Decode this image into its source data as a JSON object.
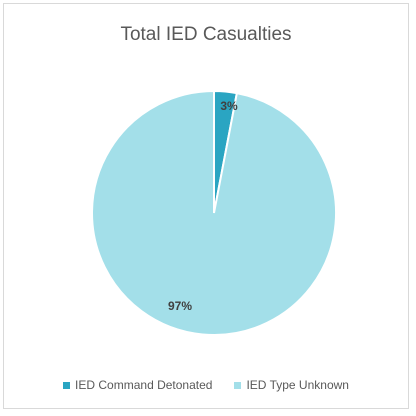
{
  "chart_data": {
    "type": "pie",
    "title": "Total IED Casualties",
    "categories": [
      "IED Command Detonated",
      "IED Type Unknown"
    ],
    "values": [
      3,
      97
    ],
    "data_labels": [
      "3%",
      "97%"
    ],
    "colors": [
      "#2aa5c2",
      "#a3dfe9"
    ],
    "legend_position": "bottom"
  }
}
